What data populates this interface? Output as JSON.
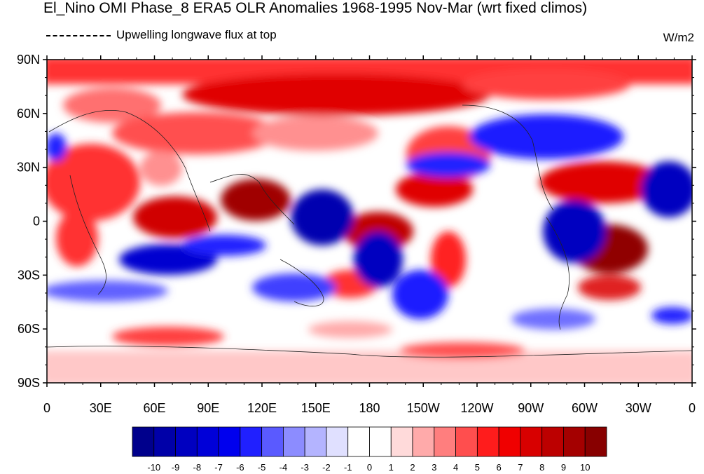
{
  "title": "El_Nino OMI Phase_8 ERA5 OLR Anomalies 1968-1995 Nov-Mar (wrt fixed climos)",
  "legend_text": "Upwelling longwave flux at top",
  "units": "W/m2",
  "lat_labels": [
    "90N",
    "60N",
    "30N",
    "0",
    "30S",
    "60S",
    "90S"
  ],
  "lon_labels": [
    "0",
    "30E",
    "60E",
    "90E",
    "120E",
    "150E",
    "180",
    "150W",
    "120W",
    "90W",
    "60W",
    "30W",
    "0"
  ],
  "colorbar": {
    "labels": [
      "-10",
      "-9",
      "-8",
      "-7",
      "-6",
      "-5",
      "-4",
      "-3",
      "-2",
      "-1",
      "0",
      "1",
      "2",
      "3",
      "4",
      "5",
      "6",
      "7",
      "8",
      "9",
      "10"
    ],
    "colors": [
      "#00008c",
      "#0000a8",
      "#0000c0",
      "#0000d8",
      "#0000ee",
      "#2020ff",
      "#5a5aff",
      "#8c8cff",
      "#b4b4ff",
      "#e0e0ff",
      "#ffffff",
      "#ffffff",
      "#ffdada",
      "#ffaaaa",
      "#ff7e7e",
      "#ff4e4e",
      "#ff1c1c",
      "#f00000",
      "#d80000",
      "#bc0000",
      "#a40000",
      "#880000"
    ]
  }
}
